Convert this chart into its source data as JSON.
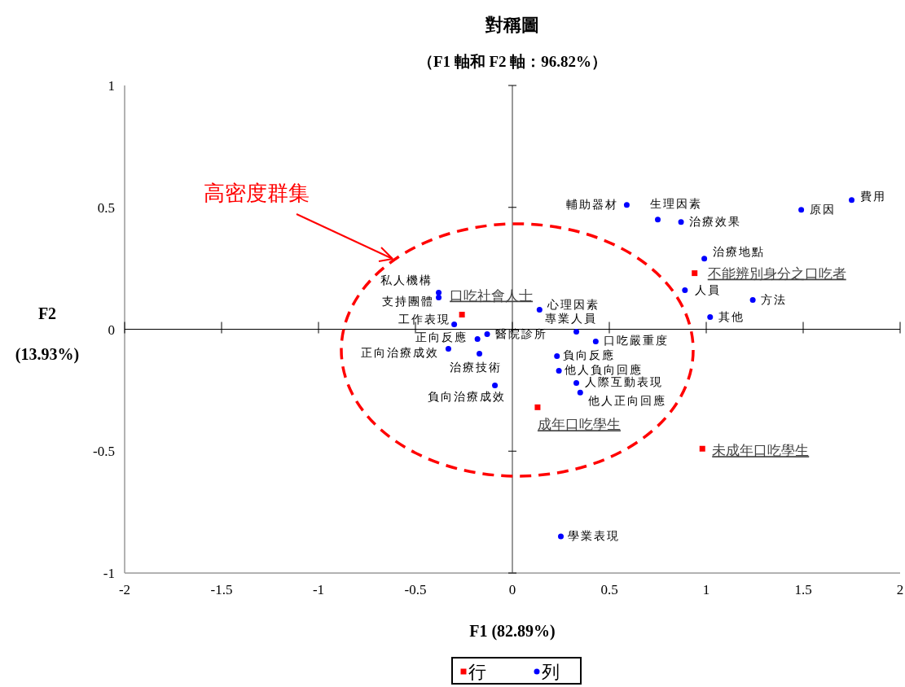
{
  "chart_data": {
    "type": "scatter",
    "title": "對稱圖",
    "subtitle": "（F1 軸和 F2 軸：96.82%）",
    "xlabel": "F1 (82.89%)",
    "ylabel": "F2 (13.93%)",
    "annotations": [
      "高密度群集"
    ],
    "xlim": [
      -2,
      2
    ],
    "ylim": [
      -1,
      1
    ],
    "xticks": [
      -2,
      -1.5,
      -1,
      -0.5,
      0,
      0.5,
      1,
      1.5,
      2
    ],
    "yticks": [
      -1,
      -0.5,
      0,
      0.5,
      1
    ],
    "grid": false,
    "legend": "bottom",
    "series": [
      {
        "name": "行",
        "color": "#ff0000",
        "marker": "square",
        "x": [
          -0.26,
          0.94,
          0.13,
          0.98
        ],
        "values": [
          0.06,
          0.23,
          -0.32,
          -0.49
        ],
        "value_labels": [
          "口吃社會人士",
          "不能辨別身分之口吃者",
          "成年口吃學生",
          "未成年口吃學生"
        ]
      },
      {
        "name": "列",
        "color": "#0000ff",
        "marker": "circle",
        "x": [
          1.75,
          1.49,
          0.59,
          0.75,
          0.87,
          0.99,
          0.89,
          1.24,
          1.02,
          0.14,
          0.33,
          0.43,
          0.23,
          0.24,
          0.33,
          0.35,
          0.25,
          -0.38,
          -0.38,
          -0.3,
          -0.18,
          -0.13,
          -0.33,
          -0.17,
          -0.09
        ],
        "values": [
          0.53,
          0.49,
          0.51,
          0.45,
          0.44,
          0.29,
          0.16,
          0.12,
          0.05,
          0.08,
          -0.01,
          -0.05,
          -0.11,
          -0.17,
          -0.22,
          -0.26,
          -0.85,
          0.15,
          0.13,
          0.02,
          -0.04,
          -0.02,
          -0.08,
          -0.1,
          -0.23
        ],
        "value_labels": [
          "費用",
          "原因",
          "輔助器材",
          "生理因素",
          "治療效果",
          "治療地點",
          "人員",
          "方法",
          "其他",
          "心理因素",
          "專業人員",
          "口吃嚴重度",
          "負向反應",
          "他人負向回應",
          "人際互動表現",
          "他人正向回應",
          "學業表現",
          "私人機構",
          "支持團體",
          "工作表現",
          "正向反應",
          "醫院診所",
          "正向治療成效",
          "治療技術",
          "負向治療成效"
        ]
      }
    ]
  }
}
